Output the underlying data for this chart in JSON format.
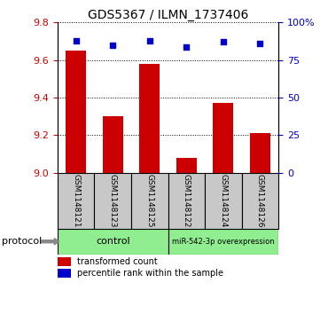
{
  "title": "GDS5367 / ILMN_1737406",
  "samples": [
    "GSM1148121",
    "GSM1148123",
    "GSM1148125",
    "GSM1148122",
    "GSM1148124",
    "GSM1148126"
  ],
  "transformed_counts": [
    9.65,
    9.3,
    9.58,
    9.08,
    9.37,
    9.21
  ],
  "percentile_ranks": [
    88,
    85,
    88,
    84,
    87,
    86
  ],
  "ylim_left": [
    9.0,
    9.8
  ],
  "ylim_right": [
    0,
    100
  ],
  "yticks_left": [
    9.0,
    9.2,
    9.4,
    9.6,
    9.8
  ],
  "yticks_right": [
    0,
    25,
    50,
    75,
    100
  ],
  "ytick_labels_right": [
    "0",
    "25",
    "50",
    "75",
    "100%"
  ],
  "bar_color": "#cc0000",
  "dot_color": "#0000cc",
  "bar_width": 0.55,
  "control_samples": [
    0,
    1,
    2
  ],
  "mir_samples": [
    3,
    4,
    5
  ],
  "control_label": "control",
  "mir_label": "miR-542-3p overexpression",
  "group_color": "#90ee90",
  "sample_box_color": "#c8c8c8",
  "protocol_label": "protocol",
  "legend_bar_label": "transformed count",
  "legend_dot_label": "percentile rank within the sample",
  "tick_color_left": "#cc0000",
  "tick_color_right": "#0000cc",
  "title_fontsize": 10,
  "tick_fontsize": 8,
  "sample_fontsize": 6.5,
  "protocol_fontsize": 8,
  "legend_fontsize": 7
}
